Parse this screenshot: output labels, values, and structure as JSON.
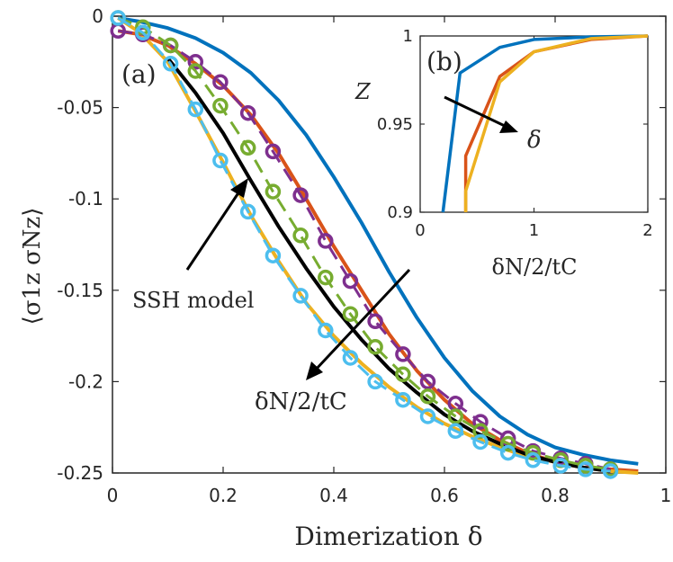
{
  "chart_data": [
    {
      "panel": "(a)",
      "type": "line",
      "xlabel": "Dimerization δ",
      "ylabel": "⟨σ1z σNz⟩",
      "xlim": [
        0,
        1
      ],
      "ylim": [
        -0.25,
        0
      ],
      "xticks": [
        "0",
        "0.2",
        "0.4",
        "0.6",
        "0.8",
        "1"
      ],
      "yticks": [
        "0",
        "-0.05",
        "-0.1",
        "-0.15",
        "-0.2",
        "-0.25"
      ],
      "annotations": [
        "SSH model",
        "δN/2/tC"
      ],
      "series": [
        {
          "name": "blue",
          "color": "#0072BD",
          "style": "solid",
          "x": [
            0.01,
            0.05,
            0.1,
            0.15,
            0.2,
            0.25,
            0.3,
            0.35,
            0.4,
            0.45,
            0.5,
            0.55,
            0.6,
            0.65,
            0.7,
            0.75,
            0.8,
            0.85,
            0.9,
            0.95
          ],
          "y": [
            -0.001,
            -0.003,
            -0.0065,
            -0.012,
            -0.02,
            -0.031,
            -0.046,
            -0.065,
            -0.088,
            -0.113,
            -0.14,
            -0.165,
            -0.187,
            -0.205,
            -0.219,
            -0.229,
            -0.236,
            -0.24,
            -0.243,
            -0.245
          ]
        },
        {
          "name": "orange",
          "color": "#D95319",
          "style": "solid",
          "x": [
            0.01,
            0.05,
            0.1,
            0.15,
            0.2,
            0.25,
            0.3,
            0.35,
            0.4,
            0.45,
            0.5,
            0.55,
            0.6,
            0.65,
            0.7,
            0.75,
            0.8,
            0.85,
            0.9,
            0.95
          ],
          "y": [
            -0.008,
            -0.01,
            -0.016,
            -0.026,
            -0.038,
            -0.054,
            -0.075,
            -0.1,
            -0.126,
            -0.15,
            -0.174,
            -0.194,
            -0.21,
            -0.223,
            -0.232,
            -0.239,
            -0.244,
            -0.247,
            -0.248,
            -0.249
          ]
        },
        {
          "name": "yellow",
          "color": "#EDB120",
          "style": "solid",
          "x": [
            0.01,
            0.05,
            0.1,
            0.15,
            0.2,
            0.25,
            0.3,
            0.35,
            0.4,
            0.45,
            0.5,
            0.55,
            0.6,
            0.65,
            0.7,
            0.75,
            0.8,
            0.85,
            0.9,
            0.95
          ],
          "y": [
            -0.001,
            -0.009,
            -0.025,
            -0.052,
            -0.08,
            -0.109,
            -0.134,
            -0.157,
            -0.175,
            -0.19,
            -0.203,
            -0.214,
            -0.223,
            -0.23,
            -0.236,
            -0.241,
            -0.244,
            -0.247,
            -0.249,
            -0.25
          ]
        },
        {
          "name": "SSH model",
          "color": "#000000",
          "style": "solid",
          "x": [
            0.1,
            0.15,
            0.2,
            0.25,
            0.3,
            0.35,
            0.4,
            0.45,
            0.5,
            0.55,
            0.6,
            0.65,
            0.7,
            0.75,
            0.8,
            0.85,
            0.9
          ],
          "y": [
            -0.023,
            -0.042,
            -0.064,
            -0.09,
            -0.115,
            -0.138,
            -0.159,
            -0.177,
            -0.193,
            -0.206,
            -0.218,
            -0.227,
            -0.234,
            -0.24,
            -0.244,
            -0.247,
            -0.249
          ]
        },
        {
          "name": "purple markers",
          "color": "#7E2F8E",
          "style": "dashed",
          "marker": "circle",
          "x": [
            0.01,
            0.055,
            0.105,
            0.15,
            0.195,
            0.245,
            0.29,
            0.34,
            0.385,
            0.43,
            0.475,
            0.525,
            0.57,
            0.62,
            0.665,
            0.715,
            0.76,
            0.81,
            0.855,
            0.9
          ],
          "y": [
            -0.008,
            -0.01,
            -0.016,
            -0.025,
            -0.036,
            -0.053,
            -0.074,
            -0.098,
            -0.123,
            -0.145,
            -0.167,
            -0.185,
            -0.2,
            -0.212,
            -0.222,
            -0.231,
            -0.238,
            -0.242,
            -0.245,
            -0.248
          ]
        },
        {
          "name": "green markers",
          "color": "#77AC30",
          "style": "dashed",
          "marker": "circle",
          "x": [
            0.01,
            0.055,
            0.105,
            0.15,
            0.195,
            0.245,
            0.29,
            0.34,
            0.385,
            0.43,
            0.475,
            0.525,
            0.57,
            0.62,
            0.665,
            0.715,
            0.76,
            0.81,
            0.855,
            0.9
          ],
          "y": [
            -0.001,
            -0.006,
            -0.016,
            -0.03,
            -0.049,
            -0.072,
            -0.096,
            -0.12,
            -0.143,
            -0.163,
            -0.181,
            -0.196,
            -0.208,
            -0.219,
            -0.227,
            -0.234,
            -0.239,
            -0.243,
            -0.246,
            -0.248
          ]
        },
        {
          "name": "cyan markers",
          "color": "#4DBEEE",
          "style": "dashed",
          "marker": "circle",
          "x": [
            0.01,
            0.055,
            0.105,
            0.15,
            0.195,
            0.245,
            0.29,
            0.34,
            0.385,
            0.43,
            0.475,
            0.525,
            0.57,
            0.62,
            0.665,
            0.715,
            0.76,
            0.81,
            0.855,
            0.9
          ],
          "y": [
            -0.001,
            -0.009,
            -0.026,
            -0.051,
            -0.079,
            -0.107,
            -0.131,
            -0.153,
            -0.172,
            -0.187,
            -0.2,
            -0.21,
            -0.219,
            -0.227,
            -0.233,
            -0.239,
            -0.243,
            -0.246,
            -0.248,
            -0.249
          ]
        }
      ]
    },
    {
      "panel": "(b)",
      "type": "line",
      "xlabel": "δN/2/tC",
      "ylabel": "Z",
      "xlim": [
        0,
        2
      ],
      "ylim": [
        0.9,
        1
      ],
      "xticks": [
        "0",
        "1",
        "2"
      ],
      "yticks": [
        "1",
        "0.95",
        "0.9"
      ],
      "annotations": [
        "δ"
      ],
      "series": [
        {
          "name": "blue",
          "color": "#0072BD",
          "x": [
            0.2,
            0.35,
            0.7,
            1.0,
            1.5,
            2.0
          ],
          "y": [
            0.9,
            0.979,
            0.9935,
            0.998,
            0.9995,
            1.0
          ]
        },
        {
          "name": "orange",
          "color": "#D95319",
          "x": [
            0.4,
            0.4,
            0.7,
            1.0,
            1.5,
            2.0
          ],
          "y": [
            0.9,
            0.932,
            0.977,
            0.991,
            0.998,
            1.0
          ]
        },
        {
          "name": "yellow",
          "color": "#EDB120",
          "x": [
            0.4,
            0.4,
            0.7,
            1.0,
            1.5,
            2.0
          ],
          "y": [
            0.9,
            0.912,
            0.974,
            0.991,
            0.9985,
            1.0
          ]
        }
      ]
    }
  ]
}
